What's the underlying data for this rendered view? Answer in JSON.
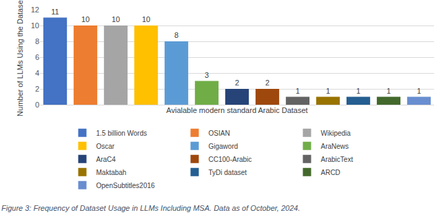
{
  "chart_data": {
    "type": "bar",
    "caption": "Figure 3: Frequency of Dataset Usage in LLMs Including MSA. Data as of October, 2024.",
    "x_label": "Avialable modern standard Arabic Dataset",
    "y_label": "Number of LLMs Using the Dataset",
    "categories": [
      "1.5 billion Words",
      "OSIAN",
      "Wikipedia",
      "Oscar",
      "Gigaword",
      "AraNews",
      "AraC4",
      "CC100-Arabic",
      "ArabicText",
      "Maktabah",
      "TyDi dataset",
      "ARCD",
      "OpenSubtitles2016"
    ],
    "values": [
      11,
      10,
      10,
      10,
      8,
      3,
      2,
      2,
      1,
      1,
      1,
      1,
      1
    ],
    "colors": [
      "#4472C4",
      "#ED7D31",
      "#A5A5A5",
      "#FFC000",
      "#5B9BD5",
      "#70AD47",
      "#264478",
      "#9E480E",
      "#636363",
      "#997300",
      "#255E91",
      "#43682B",
      "#698ED0"
    ],
    "ylim": [
      0,
      12
    ],
    "yticks": [
      0,
      2,
      4,
      6,
      8,
      10,
      12
    ],
    "grid": true,
    "legend": "bottom",
    "data_labels": true,
    "tick_labels": "y"
  }
}
